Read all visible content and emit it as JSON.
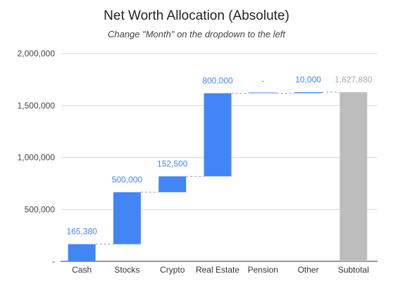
{
  "chart_data": {
    "type": "bar",
    "subtype": "waterfall",
    "title": "Net Worth Allocation (Absolute)",
    "subtitle": "Change \"Month\" on the dropdown to the left",
    "categories": [
      "Cash",
      "Stocks",
      "Crypto",
      "Real Estate",
      "Pension",
      "Other",
      "Subtotal"
    ],
    "values": [
      165380,
      500000,
      152500,
      800000,
      0,
      10000,
      1627880
    ],
    "data_labels": [
      "165,380",
      "500,000",
      "152,500",
      "800,000",
      "-",
      "10,000",
      "1,627,880"
    ],
    "total_index": 6,
    "y_ticks": [
      0,
      500000,
      1000000,
      1500000,
      2000000
    ],
    "y_tick_labels": [
      "-",
      "500,000",
      "1,000,000",
      "1,500,000",
      "2,000,000"
    ],
    "ylim": [
      0,
      2000000
    ],
    "grid": true,
    "colors": {
      "increase": "#4285f4",
      "total": "#bdbdbd",
      "label_increase": "#4285f4",
      "label_total": "#a9a9a9",
      "gridline": "#d9d9d9",
      "connector": "#999999"
    }
  }
}
